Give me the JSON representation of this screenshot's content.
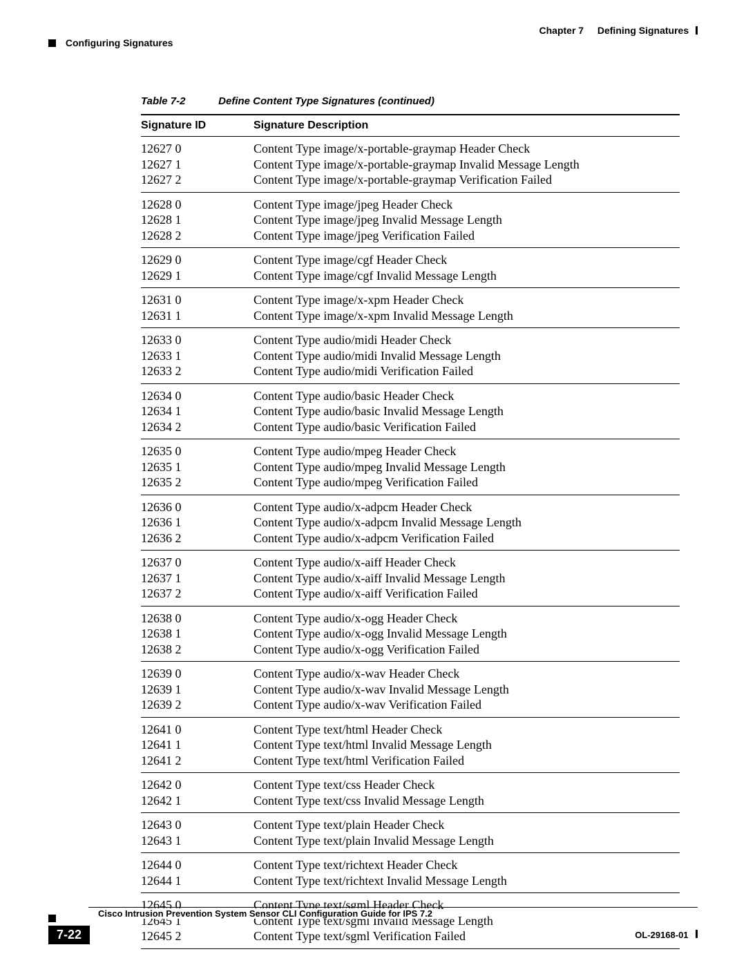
{
  "header": {
    "chapter": "Chapter 7",
    "title": "Defining Signatures",
    "section": "Configuring Signatures"
  },
  "table": {
    "caption_number": "Table 7-2",
    "caption_title": "Define Content Type Signatures (continued)",
    "columns": [
      "Signature ID",
      "Signature Description"
    ],
    "groups": [
      {
        "ids": [
          "12627 0",
          "12627 1",
          "12627 2"
        ],
        "descs": [
          "Content Type image/x-portable-graymap Header Check",
          "Content Type image/x-portable-graymap Invalid Message Length",
          "Content Type image/x-portable-graymap Verification Failed"
        ]
      },
      {
        "ids": [
          "12628 0",
          "12628 1",
          "12628 2"
        ],
        "descs": [
          "Content Type image/jpeg Header Check",
          "Content Type image/jpeg Invalid Message Length",
          "Content Type image/jpeg Verification Failed"
        ]
      },
      {
        "ids": [
          "12629 0",
          "12629 1"
        ],
        "descs": [
          "Content Type image/cgf Header Check",
          "Content Type image/cgf Invalid Message Length"
        ]
      },
      {
        "ids": [
          "12631 0",
          "12631 1"
        ],
        "descs": [
          "Content Type image/x-xpm Header Check",
          "Content Type image/x-xpm Invalid Message Length"
        ]
      },
      {
        "ids": [
          "12633 0",
          "12633 1",
          "12633 2"
        ],
        "descs": [
          "Content Type audio/midi Header Check",
          "Content Type audio/midi Invalid Message Length",
          "Content Type audio/midi Verification Failed"
        ]
      },
      {
        "ids": [
          "12634 0",
          "12634 1",
          "12634 2"
        ],
        "descs": [
          "Content Type audio/basic Header Check",
          "Content Type audio/basic Invalid Message Length",
          "Content Type audio/basic Verification Failed"
        ]
      },
      {
        "ids": [
          "12635 0",
          "12635 1",
          "12635 2"
        ],
        "descs": [
          "Content Type audio/mpeg Header Check",
          "Content Type audio/mpeg Invalid Message Length",
          "Content Type audio/mpeg Verification Failed"
        ]
      },
      {
        "ids": [
          "12636 0",
          "12636 1",
          "12636 2"
        ],
        "descs": [
          "Content Type audio/x-adpcm Header Check",
          "Content Type audio/x-adpcm Invalid Message Length",
          "Content Type audio/x-adpcm Verification Failed"
        ]
      },
      {
        "ids": [
          "12637 0",
          "12637 1",
          "12637 2"
        ],
        "descs": [
          "Content Type audio/x-aiff Header Check",
          "Content Type audio/x-aiff Invalid Message Length",
          "Content Type audio/x-aiff Verification Failed"
        ]
      },
      {
        "ids": [
          "12638 0",
          "12638 1",
          "12638 2"
        ],
        "descs": [
          "Content Type audio/x-ogg Header Check",
          "Content Type audio/x-ogg Invalid Message Length",
          "Content Type audio/x-ogg Verification Failed"
        ]
      },
      {
        "ids": [
          "12639 0",
          "12639 1",
          "12639 2"
        ],
        "descs": [
          "Content Type audio/x-wav Header Check",
          "Content Type audio/x-wav Invalid Message Length",
          "Content Type audio/x-wav Verification Failed"
        ]
      },
      {
        "ids": [
          "12641 0",
          "12641 1",
          "12641 2"
        ],
        "descs": [
          "Content Type text/html Header Check",
          "Content Type text/html Invalid Message Length",
          "Content Type text/html Verification Failed"
        ]
      },
      {
        "ids": [
          "12642 0",
          "12642 1"
        ],
        "descs": [
          "Content Type text/css Header Check",
          "Content Type text/css Invalid Message Length"
        ]
      },
      {
        "ids": [
          "12643 0",
          "12643 1"
        ],
        "descs": [
          "Content Type text/plain Header Check",
          "Content Type text/plain Invalid Message Length"
        ]
      },
      {
        "ids": [
          "12644 0",
          "12644 1"
        ],
        "descs": [
          "Content Type text/richtext Header Check",
          "Content Type text/richtext Invalid Message Length"
        ]
      },
      {
        "ids": [
          "12645 0",
          "12645 1",
          "12645 2"
        ],
        "descs": [
          "Content Type text/sgml Header Check",
          "Content Type text/sgml Invalid Message Length",
          "Content Type text/sgml Verification Failed"
        ]
      }
    ]
  },
  "footer": {
    "book_title": "Cisco Intrusion Prevention System Sensor CLI Configuration Guide for IPS 7.2",
    "page_number": "7-22",
    "pub_id": "OL-29168-01"
  }
}
